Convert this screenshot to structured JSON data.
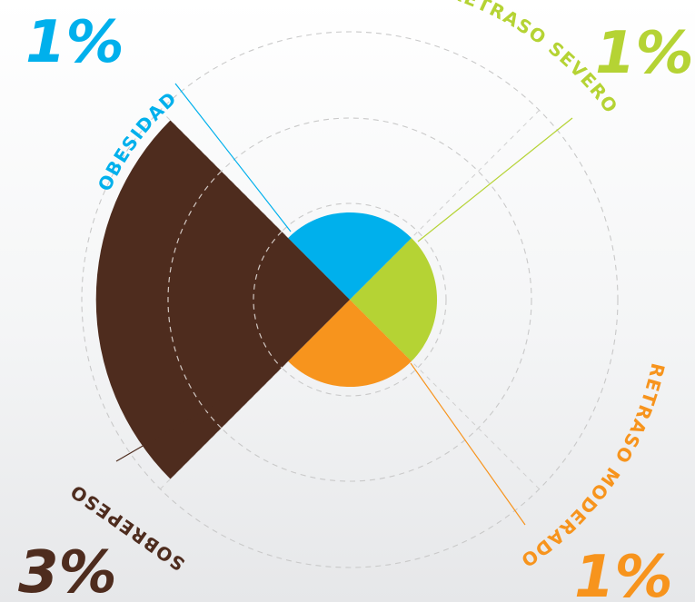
{
  "chart_data": {
    "type": "polar-area",
    "categories": [
      {
        "id": "obesidad",
        "label": "OBESIDAD",
        "value_label": "1%",
        "value": 1,
        "color": "#00b0ec"
      },
      {
        "id": "retraso-severo",
        "label": "RETRASO SEVERO",
        "value_label": "1%",
        "value": 1,
        "color": "#b5d334"
      },
      {
        "id": "retraso-moderado",
        "label": "RETRASO MODERADO",
        "value_label": "1%",
        "value": 1,
        "color": "#f7941d"
      },
      {
        "id": "sobrepeso",
        "label": "SOBREPESO",
        "value_label": "3%",
        "value": 3,
        "color": "#4e2c1e"
      }
    ],
    "grid": true
  }
}
